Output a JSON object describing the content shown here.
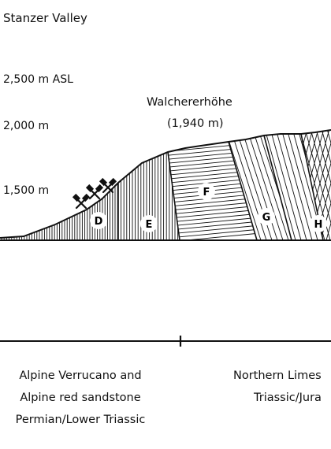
{
  "header": {
    "valley_name": "Stanzer Valley"
  },
  "elevations": {
    "e2500": "2,500 m ASL",
    "e2000": "2,000 m",
    "e1500": "1,500 m"
  },
  "summit": {
    "name": "Walchererhöhe",
    "elevation": "(1,940 m)"
  },
  "units": {
    "D": "D",
    "E": "E",
    "F": "F",
    "G": "G",
    "H": "H"
  },
  "mine_symbol": "mining-hammers-icon",
  "legend": {
    "left": {
      "line1": "Alpine Verrucano and",
      "line2": "Alpine red sandstone",
      "line3": "Permian/Lower Triassic"
    },
    "right": {
      "line1": "Northern Limes",
      "line2": "Triassic/Jura"
    }
  },
  "colors": {
    "ink": "#111111",
    "background": "#ffffff"
  }
}
